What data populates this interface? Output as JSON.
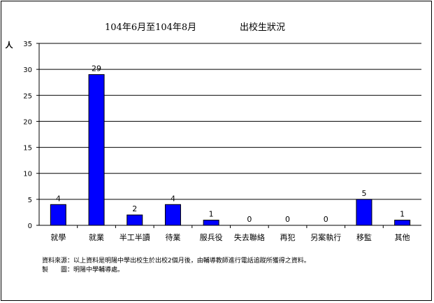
{
  "chart_data": {
    "type": "bar",
    "title": "104年6月至104年8月",
    "subtitle": "出校生狀況",
    "ylabel": "人",
    "xlabel": "",
    "ylim": [
      0,
      35
    ],
    "yticks": [
      0,
      5,
      10,
      15,
      20,
      25,
      30,
      35
    ],
    "grid": true,
    "legend": "none",
    "bar_color": "#0000ff",
    "categories": [
      "就學",
      "就業",
      "半工半讀",
      "待業",
      "服兵役",
      "失去聯絡",
      "再犯",
      "另案執行",
      "移監",
      "其他"
    ],
    "values": [
      4,
      29,
      2,
      4,
      1,
      0,
      0,
      0,
      5,
      1
    ]
  },
  "notes": {
    "source": "資料來源：以上資料是明陽中學出校生於出校2個月後，由輔導教師進行電話追蹤所獲得之資料。",
    "maker": "製　　圖：明陽中學輔導處。"
  }
}
